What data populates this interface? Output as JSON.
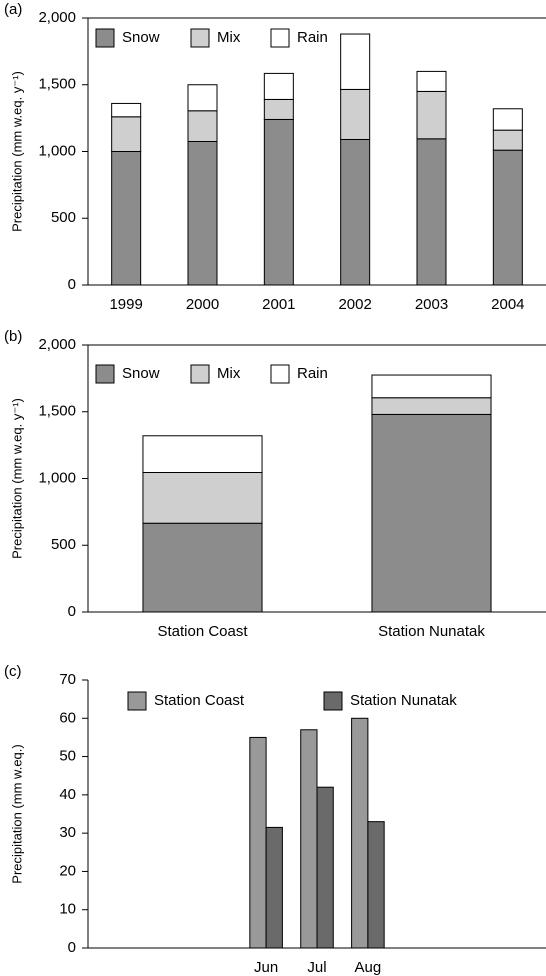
{
  "chart_data": [
    {
      "type": "bar",
      "stacked": true,
      "panel": "(a)",
      "y_label": "Precipitation (mm w.eq. y⁻¹)",
      "categories": [
        "1999",
        "2000",
        "2001",
        "2002",
        "2003",
        "2004"
      ],
      "series": [
        {
          "name": "Snow",
          "color": "#8c8c8c",
          "values": [
            1000,
            1075,
            1240,
            1090,
            1095,
            1010
          ]
        },
        {
          "name": "Mix",
          "color": "#cfcfcf",
          "values": [
            260,
            230,
            150,
            375,
            355,
            150
          ]
        },
        {
          "name": "Rain",
          "color": "#ffffff",
          "values": [
            100,
            195,
            195,
            415,
            150,
            160
          ]
        }
      ],
      "ylim": [
        0,
        2000
      ],
      "yticks": [
        0,
        500,
        {
          "value": 1000,
          "label": "1,000"
        },
        {
          "value": 1500,
          "label": "1,500"
        },
        {
          "value": 2000,
          "label": "2,000"
        }
      ]
    },
    {
      "type": "bar",
      "stacked": true,
      "panel": "(b)",
      "y_label": "Precipitation (mm w.eq. y⁻¹)",
      "categories": [
        "Station Coast",
        "Station Nunatak"
      ],
      "series": [
        {
          "name": "Snow",
          "color": "#8c8c8c",
          "values": [
            665,
            1480
          ]
        },
        {
          "name": "Mix",
          "color": "#cfcfcf",
          "values": [
            380,
            125
          ]
        },
        {
          "name": "Rain",
          "color": "#ffffff",
          "values": [
            275,
            170
          ]
        }
      ],
      "ylim": [
        0,
        2000
      ],
      "yticks": [
        0,
        500,
        {
          "value": 1000,
          "label": "1,000"
        },
        {
          "value": 1500,
          "label": "1,500"
        },
        {
          "value": 2000,
          "label": "2,000"
        }
      ]
    },
    {
      "type": "bar",
      "stacked": false,
      "panel": "(c)",
      "y_label": "Precipitation (mm w.eq.)",
      "categories": [
        null,
        null,
        null,
        "Jun",
        "Jul",
        "Aug",
        null,
        null,
        null
      ],
      "series": [
        {
          "name": "Station Coast",
          "color": "#999999",
          "values": [
            null,
            null,
            null,
            55,
            57,
            60,
            null,
            null,
            null
          ]
        },
        {
          "name": "Station Nunatak",
          "color": "#6a6a6a",
          "values": [
            null,
            null,
            null,
            31.5,
            42,
            33,
            null,
            null,
            null
          ]
        }
      ],
      "ylim": [
        0,
        70
      ],
      "yticks": [
        0,
        10,
        20,
        30,
        40,
        50,
        60,
        70
      ]
    }
  ]
}
